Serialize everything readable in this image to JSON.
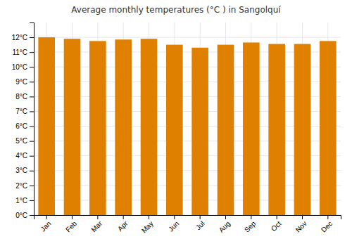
{
  "chart_data": {
    "type": "bar",
    "title": "Average monthly temperatures (°C ) in Sangolquí",
    "categories": [
      "Jan",
      "Feb",
      "Mar",
      "Apr",
      "May",
      "Jun",
      "Jul",
      "Aug",
      "Sep",
      "Oct",
      "Nov",
      "Dec"
    ],
    "values": [
      12.0,
      11.9,
      11.75,
      11.85,
      11.9,
      11.5,
      11.3,
      11.5,
      11.65,
      11.55,
      11.55,
      11.75
    ],
    "color": "#E08000",
    "ylim": [
      0,
      13
    ],
    "yticks": [
      {
        "value": 0,
        "label": "0°C"
      },
      {
        "value": 1,
        "label": "1°C"
      },
      {
        "value": 2,
        "label": "2°C"
      },
      {
        "value": 3,
        "label": "3°C"
      },
      {
        "value": 4,
        "label": "4°C"
      },
      {
        "value": 5,
        "label": "5°C"
      },
      {
        "value": 6,
        "label": "6°C"
      },
      {
        "value": 7,
        "label": "7°C"
      },
      {
        "value": 8,
        "label": "8°C"
      },
      {
        "value": 9,
        "label": "9°C"
      },
      {
        "value": 10,
        "label": "10°C"
      },
      {
        "value": 11,
        "label": "11°C"
      },
      {
        "value": 12,
        "label": "12°C"
      }
    ],
    "grid": true
  }
}
